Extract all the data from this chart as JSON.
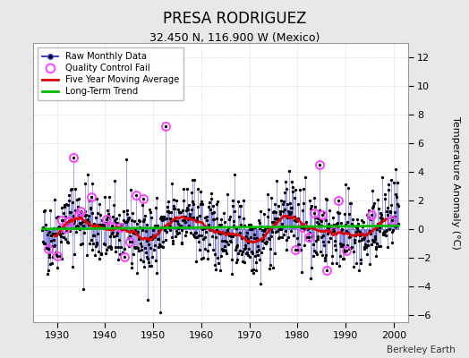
{
  "title": "PRESA RODRIGUEZ",
  "subtitle": "32.450 N, 116.900 W (Mexico)",
  "ylabel": "Temperature Anomaly (°C)",
  "credit": "Berkeley Earth",
  "xlim": [
    1925,
    2003
  ],
  "ylim": [
    -6.5,
    13
  ],
  "yticks": [
    -6,
    -4,
    -2,
    0,
    2,
    4,
    6,
    8,
    10,
    12
  ],
  "xticks": [
    1930,
    1940,
    1950,
    1960,
    1970,
    1980,
    1990,
    2000
  ],
  "bg_color": "#e8e8e8",
  "plot_bg_color": "#ffffff",
  "raw_line_color": "#4444cc",
  "raw_marker_color": "#000000",
  "qc_fail_color": "#ff44ff",
  "moving_avg_color": "#dd0000",
  "trend_color": "#00bb00",
  "seed": 42,
  "start_year": 1927,
  "end_year": 2001,
  "trend_slope": 0.003,
  "trend_intercept": 0.12
}
